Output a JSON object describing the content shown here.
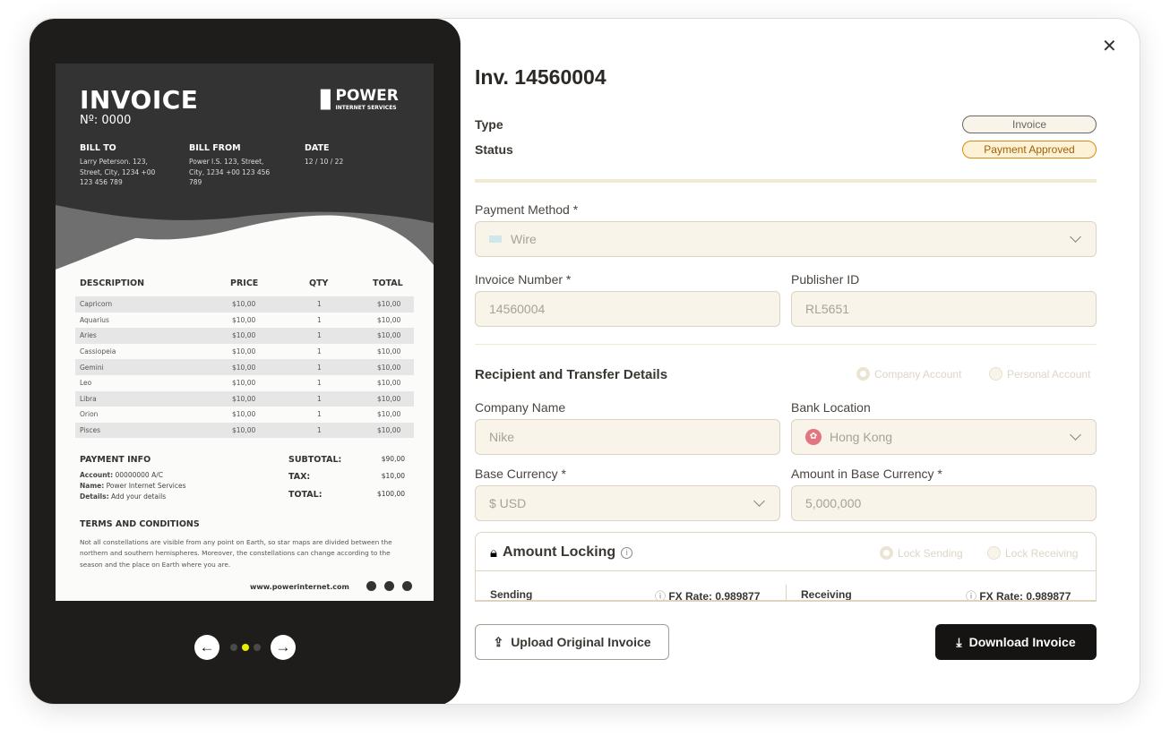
{
  "preview": {
    "title": "INVOICE",
    "number": "Nº: 0000",
    "logo": {
      "name": "POWER",
      "sub": "INTERNET SERVICES"
    },
    "bill_to": {
      "label": "BILL TO",
      "lines": [
        "Larry Peterson. 123,",
        "Street, City, 1234 +00",
        "123 456 789"
      ]
    },
    "bill_from": {
      "label": "BILL FROM",
      "lines": [
        "Power I.S. 123, Street,",
        "City, 1234 +00 123 456",
        "789"
      ]
    },
    "date": {
      "label": "DATE",
      "value": "12 / 10 / 22"
    },
    "columns": [
      "DESCRIPTION",
      "PRICE",
      "QTY",
      "TOTAL"
    ],
    "items": [
      {
        "d": "Capricorn",
        "p": "$10,00",
        "q": "1",
        "t": "$10,00"
      },
      {
        "d": "Aquarius",
        "p": "$10,00",
        "q": "1",
        "t": "$10,00"
      },
      {
        "d": "Aries",
        "p": "$10,00",
        "q": "1",
        "t": "$10,00"
      },
      {
        "d": "Cassiopeia",
        "p": "$10,00",
        "q": "1",
        "t": "$10,00"
      },
      {
        "d": "Gemini",
        "p": "$10,00",
        "q": "1",
        "t": "$10,00"
      },
      {
        "d": "Leo",
        "p": "$10,00",
        "q": "1",
        "t": "$10,00"
      },
      {
        "d": "Libra",
        "p": "$10,00",
        "q": "1",
        "t": "$10,00"
      },
      {
        "d": "Orion",
        "p": "$10,00",
        "q": "1",
        "t": "$10,00"
      },
      {
        "d": "Pisces",
        "p": "$10,00",
        "q": "1",
        "t": "$10,00"
      }
    ],
    "payment_info": {
      "label": "PAYMENT INFO",
      "account_k": "Account:",
      "account_v": " 00000000 A/C",
      "name_k": "Name:",
      "name_v": " Power Internet Services",
      "details_k": "Details:",
      "details_v": " Add your details"
    },
    "totals": {
      "subtotal_k": "SUBTOTAL:",
      "subtotal_v": "$90,00",
      "tax_k": "TAX:",
      "tax_v": "$10,00",
      "total_k": "TOTAL:",
      "total_v": "$100,00"
    },
    "terms": {
      "label": "TERMS AND CONDITIONS",
      "text": "Not all constellations are visible from any point on Earth, so star maps are divided between the northern and southern hemispheres. Moreover, the constellations can change according to the season and the place on Earth where you are."
    },
    "website": "www.powerinternet.com",
    "pager": {
      "current": 2,
      "total": 3
    }
  },
  "header": {
    "title": "Inv. 14560004"
  },
  "type": {
    "label": "Type",
    "value": "Invoice"
  },
  "status": {
    "label": "Status",
    "value": "Payment Approved",
    "color": "#f0a020"
  },
  "form": {
    "payment_method": {
      "label": "Payment Method *",
      "value": "Wire"
    },
    "invoice_number": {
      "label": "Invoice Number *",
      "value": "14560004"
    },
    "publisher_id": {
      "label": "Publisher ID",
      "value": "RL5651"
    },
    "section": "Recipient and Transfer Details",
    "account_options": [
      "Company Account",
      "Personal Account"
    ],
    "company_name": {
      "label": "Company Name",
      "value": "Nike"
    },
    "bank_location": {
      "label": "Bank Location",
      "value": "Hong Kong"
    },
    "base_currency": {
      "label": "Base Currency *",
      "value": "$ USD"
    },
    "amount": {
      "label": "Amount in Base Currency *",
      "value": "5,000,000"
    }
  },
  "locking": {
    "title": "Amount Locking",
    "options": [
      "Lock Sending",
      "Lock Receiving"
    ],
    "sending": "Sending",
    "receiving": "Receiving",
    "fx_sending": "FX Rate: 0.989877",
    "fx_receiving": "FX Rate: 0.989877"
  },
  "actions": {
    "upload": "Upload Original Invoice",
    "download": "Download Invoice"
  }
}
